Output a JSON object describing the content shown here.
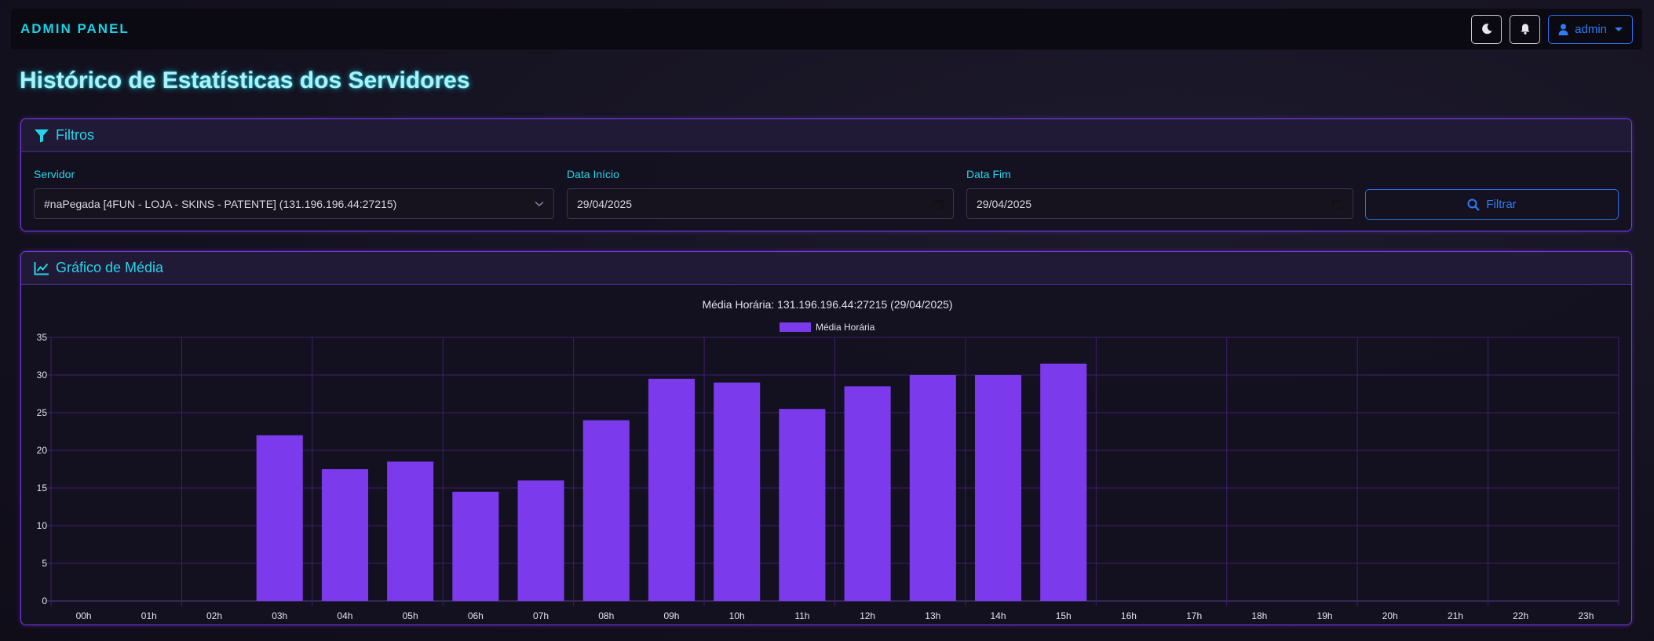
{
  "navbar": {
    "brand": "ADMIN PANEL",
    "theme_icon": "moon-icon",
    "notifications_icon": "bell-icon",
    "user": {
      "label": "admin",
      "icon": "user-icon"
    }
  },
  "page": {
    "title": "Histórico de Estatísticas dos Servidores"
  },
  "filters": {
    "header": "Filtros",
    "header_icon": "filter-icon",
    "server": {
      "label": "Servidor",
      "value": "#naPegada [4FUN - LOJA - SKINS - PATENTE] (131.196.196.44:27215)"
    },
    "start_date": {
      "label": "Data Início",
      "value": "29/04/2025"
    },
    "end_date": {
      "label": "Data Fim",
      "value": "29/04/2025"
    },
    "submit": {
      "label": "Filtrar",
      "icon": "search-icon"
    }
  },
  "chart_card": {
    "header": "Gráfico de Média",
    "header_icon": "line-chart-icon"
  },
  "colors": {
    "accent_cyan": "#19d3e6",
    "bar_purple": "#7c3aed",
    "grid_purple": "#3f1f6e",
    "button_blue": "#2f7cf6"
  },
  "chart_data": {
    "type": "bar",
    "title": "Média Horária: 131.196.196.44:27215 (29/04/2025)",
    "legend": {
      "position": "top-center",
      "entries": [
        "Média Horária"
      ]
    },
    "categories": [
      "00h",
      "01h",
      "02h",
      "03h",
      "04h",
      "05h",
      "06h",
      "07h",
      "08h",
      "09h",
      "10h",
      "11h",
      "12h",
      "13h",
      "14h",
      "15h",
      "16h",
      "17h",
      "18h",
      "19h",
      "20h",
      "21h",
      "22h",
      "23h"
    ],
    "series": [
      {
        "name": "Média Horária",
        "values": [
          null,
          null,
          null,
          22,
          17.5,
          18.5,
          14.5,
          16,
          24,
          29.5,
          29,
          25.5,
          28.5,
          30,
          30,
          31.5,
          null,
          null,
          null,
          null,
          null,
          null,
          null,
          null
        ]
      }
    ],
    "ylim": [
      0,
      35
    ],
    "yticks": [
      0,
      5,
      10,
      15,
      20,
      25,
      30,
      35
    ],
    "grid": true
  }
}
